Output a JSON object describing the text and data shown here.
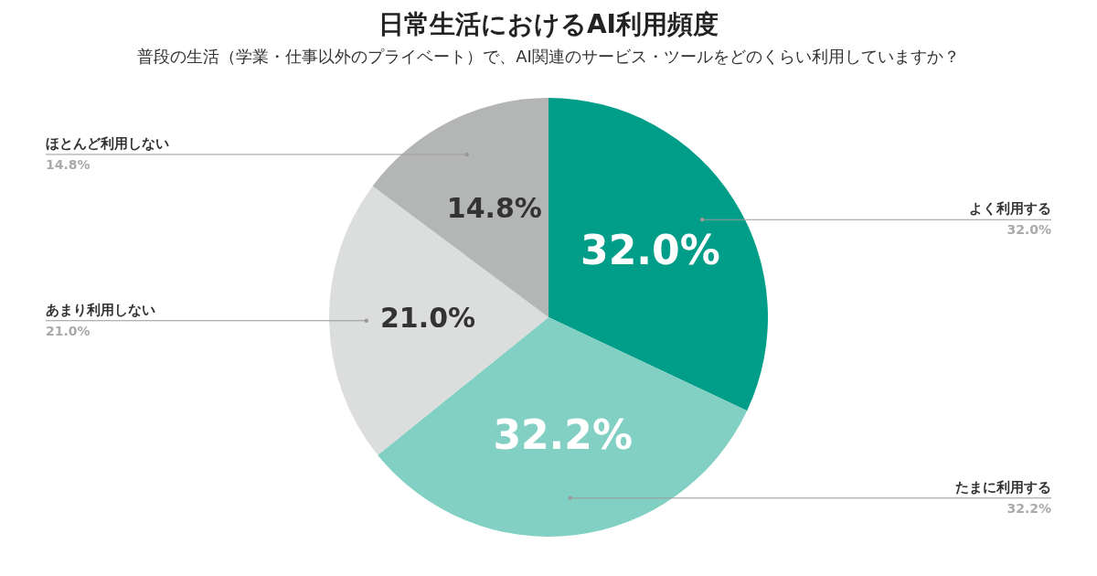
{
  "chart_data": {
    "type": "pie",
    "title": "日常生活におけるAI利用頻度",
    "subtitle": "普段の生活（学業・仕事以外のプライベート）で、AI関連のサービス・ツールをどのくらい利用していますか？",
    "categories": [
      "よく利用する",
      "たまに利用する",
      "あまり利用しない",
      "ほとんど利用しない"
    ],
    "values": [
      32.0,
      32.2,
      21.0,
      14.8
    ],
    "colors": [
      "#009e88",
      "#82d0c3",
      "#dcdddd",
      "#b4b6b5"
    ],
    "value_labels": [
      "32.0%",
      "32.2%",
      "21.0%",
      "14.8%"
    ],
    "legend": false
  }
}
